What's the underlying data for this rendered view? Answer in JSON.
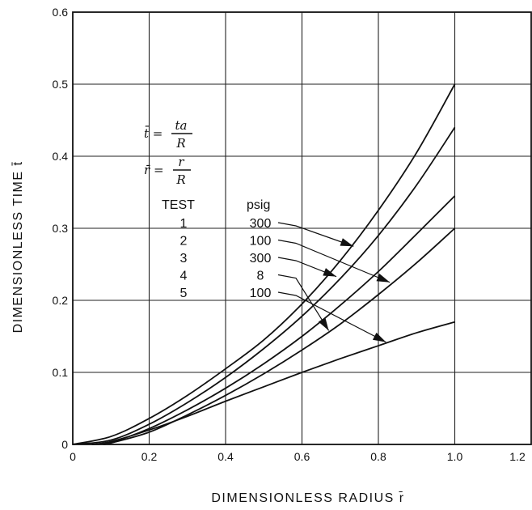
{
  "chart_data": {
    "type": "line",
    "title": "",
    "xlabel": "DIMENSIONLESS RADIUS r̄",
    "ylabel": "DIMENSIONLESS TIME t̄",
    "xlim": [
      0,
      1.2
    ],
    "ylim": [
      0,
      0.6
    ],
    "grid": true,
    "x_ticks": [
      "0",
      "0.2",
      "0.4",
      "0.6",
      "0.8",
      "1.0",
      "1.2"
    ],
    "y_ticks": [
      "0",
      "0.1",
      "0.2",
      "0.3",
      "0.4",
      "0.5",
      "0.6"
    ],
    "formulas": [
      {
        "lhs": "t̄ =",
        "num": "ta",
        "den": "R"
      },
      {
        "lhs": "r̄ =",
        "num": "r",
        "den": "R"
      }
    ],
    "legend_table": {
      "headers": [
        "TEST",
        "psig"
      ],
      "rows": [
        {
          "test": "1",
          "psig": "300"
        },
        {
          "test": "2",
          "psig": "100"
        },
        {
          "test": "3",
          "psig": "300"
        },
        {
          "test": "4",
          "psig": "8"
        },
        {
          "test": "5",
          "psig": "100"
        }
      ]
    },
    "series": [
      {
        "x": [
          0,
          0.1,
          0.2,
          0.3,
          0.4,
          0.5,
          0.6,
          0.7,
          0.8,
          0.9,
          1.0
        ],
        "values": [
          0,
          0.011,
          0.036,
          0.068,
          0.105,
          0.145,
          0.195,
          0.255,
          0.325,
          0.405,
          0.5
        ]
      },
      {
        "x": [
          0,
          0.1,
          0.2,
          0.3,
          0.4,
          0.5,
          0.6,
          0.7,
          0.8,
          0.9,
          1.0
        ],
        "values": [
          0,
          0.006,
          0.028,
          0.058,
          0.093,
          0.133,
          0.178,
          0.23,
          0.29,
          0.36,
          0.44
        ]
      },
      {
        "x": [
          0.05,
          0.1,
          0.2,
          0.3,
          0.4,
          0.5,
          0.6,
          0.7,
          0.8,
          0.9,
          1.0
        ],
        "values": [
          0,
          0.003,
          0.022,
          0.048,
          0.078,
          0.112,
          0.15,
          0.193,
          0.24,
          0.292,
          0.345
        ]
      },
      {
        "x": [
          0.08,
          0.1,
          0.2,
          0.3,
          0.4,
          0.5,
          0.6,
          0.7,
          0.8,
          0.9,
          1.0
        ],
        "values": [
          0,
          0.002,
          0.017,
          0.041,
          0.068,
          0.098,
          0.131,
          0.167,
          0.208,
          0.252,
          0.3
        ]
      },
      {
        "x": [
          0.05,
          0.1,
          0.2,
          0.3,
          0.4,
          0.5,
          0.6,
          0.7,
          0.8,
          0.9,
          1.0
        ],
        "values": [
          0,
          0.004,
          0.02,
          0.039,
          0.06,
          0.08,
          0.1,
          0.119,
          0.137,
          0.155,
          0.17
        ]
      }
    ],
    "pointers": [
      {
        "test": "1",
        "target": [
          0.735,
          0.275
        ]
      },
      {
        "test": "2",
        "target": [
          0.83,
          0.225
        ]
      },
      {
        "test": "3",
        "target": [
          0.69,
          0.233
        ]
      },
      {
        "test": "4",
        "target": [
          0.67,
          0.158
        ]
      },
      {
        "test": "5",
        "target": [
          0.82,
          0.142
        ]
      }
    ]
  }
}
